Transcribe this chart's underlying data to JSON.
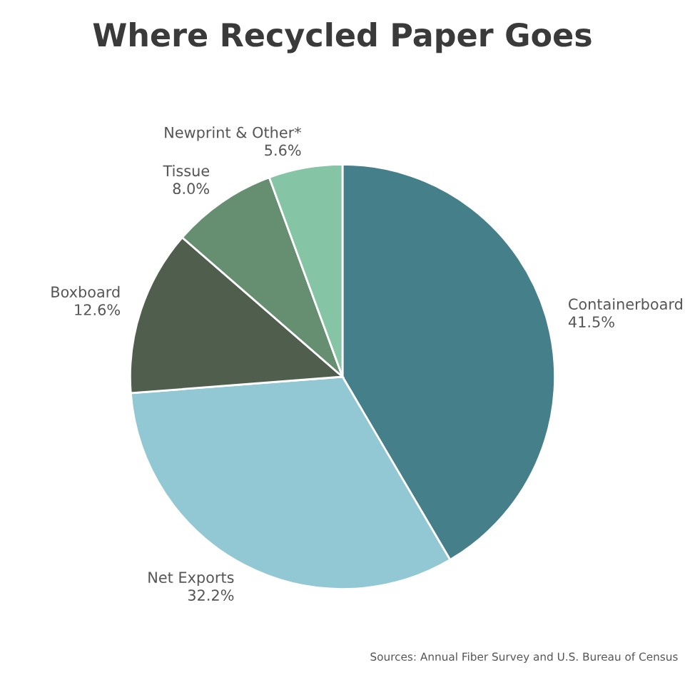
{
  "chart_data": {
    "type": "pie",
    "title": "Where Recycled Paper Goes",
    "categories": [
      "Containerboard",
      "Net Exports",
      "Boxboard",
      "Tissue",
      "Newprint & Other*"
    ],
    "values": [
      41.5,
      32.2,
      12.6,
      8.0,
      5.6
    ],
    "value_labels": [
      "41.5%",
      "32.2%",
      "12.6%",
      "8.0%",
      "5.6%"
    ],
    "colors": [
      "#457f8a",
      "#92c8d4",
      "#4f5e4d",
      "#668f72",
      "#85c4a5"
    ],
    "legend": false,
    "annotations": [
      "Sources: Annual Fiber Survey and U.S. Bureau of Census"
    ]
  }
}
